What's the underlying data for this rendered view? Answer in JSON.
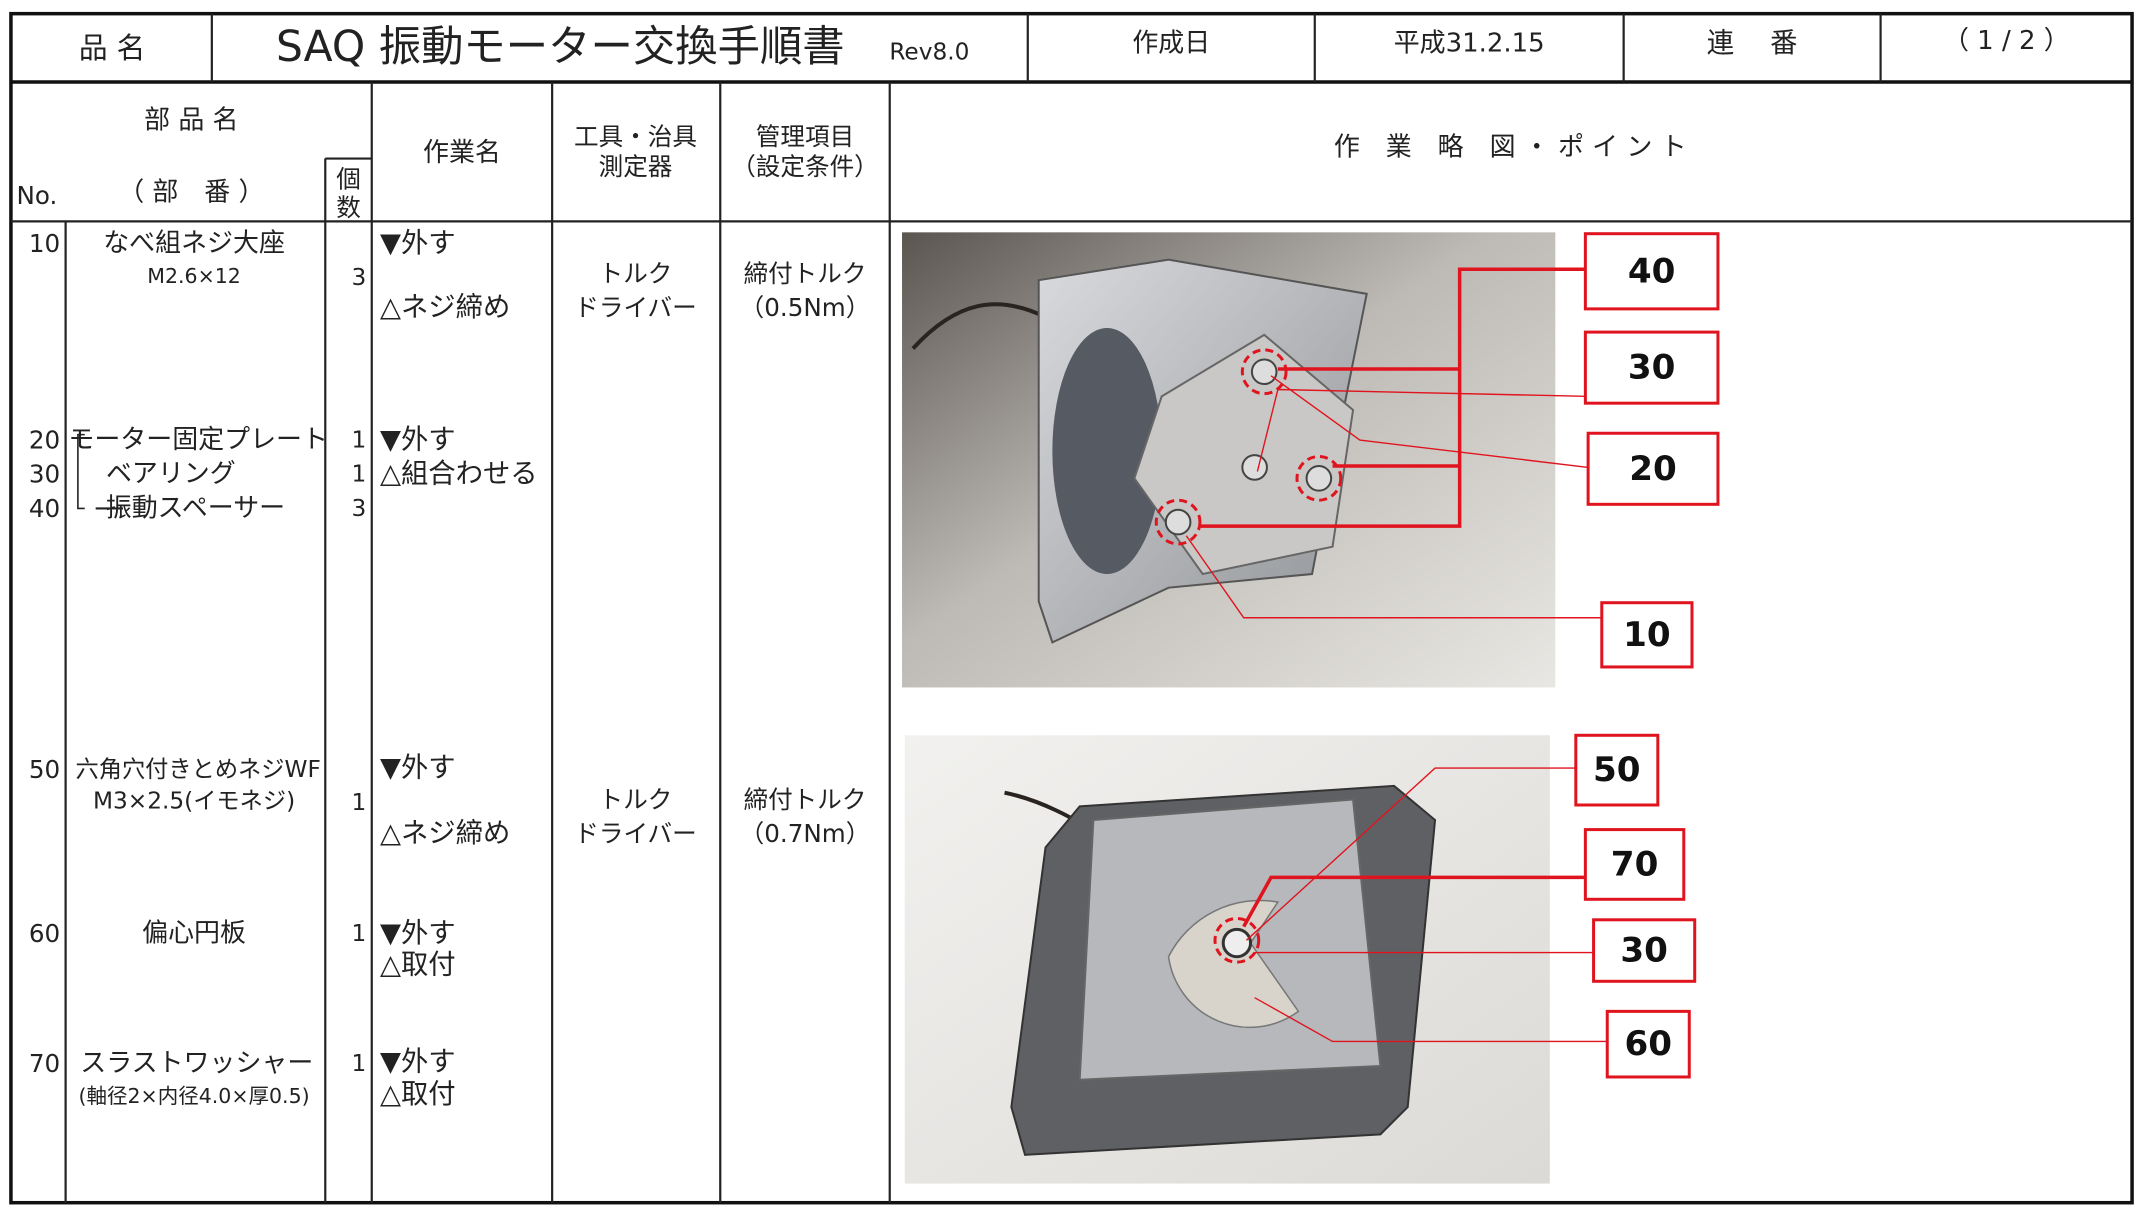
{
  "header": {
    "label_name": "品 名",
    "title": "SAQ 振動モーター交換手順書",
    "revision": "Rev8.0",
    "label_date": "作成日",
    "date": "平成31.2.15",
    "label_serial": "連　 番",
    "serial": "（ 1 / 2 ）"
  },
  "table": {
    "columns": {
      "part_name": "部 品 名",
      "no": "No.",
      "part_number": "（ 部　番 ）",
      "quantity": [
        "個",
        "数"
      ],
      "operation": "作業名",
      "tools": [
        "工具・治具",
        "測定器"
      ],
      "control": [
        "管理項目",
        "（設定条件）"
      ],
      "diagram": "作　業　略　図 ・ ポ イ ン ト"
    },
    "groups": [
      {
        "items": [
          {
            "no": "10",
            "name": "なべ組ネジ大座",
            "spec": "M2.6×12",
            "qty": "3"
          }
        ],
        "operations": [
          "▼外す",
          "△ネジ締め"
        ],
        "tools": [
          "トルク",
          "ドライバー"
        ],
        "control": [
          "締付トルク",
          "（0.5Nm）"
        ]
      },
      {
        "items": [
          {
            "no": "20",
            "name": "モーター固定プレート",
            "qty": "1"
          },
          {
            "no": "30",
            "name": "ベアリング",
            "qty": "1"
          },
          {
            "no": "40",
            "name": "振動スペーサー",
            "qty": "3"
          }
        ],
        "operations": [
          "▼外す",
          "△組合わせる"
        ]
      },
      {
        "items": [
          {
            "no": "50",
            "name": "六角穴付きとめネジWF",
            "spec": "M3×2.5(イモネジ)",
            "qty": "1"
          }
        ],
        "operations": [
          "▼外す",
          "△ネジ締め"
        ],
        "tools": [
          "トルク",
          "ドライバー"
        ],
        "control": [
          "締付トルク",
          "（0.7Nm）"
        ]
      },
      {
        "items": [
          {
            "no": "60",
            "name": "偏心円板",
            "qty": "1"
          }
        ],
        "operations": [
          "▼外す",
          "△取付"
        ]
      },
      {
        "items": [
          {
            "no": "70",
            "name": "スラストワッシャー",
            "spec": "(軸径2×内径4.0×厚0.5)",
            "qty": "1"
          }
        ],
        "operations": [
          "▼外す",
          "△取付"
        ]
      }
    ]
  },
  "figures": [
    {
      "callouts": [
        "40",
        "30",
        "20",
        "10"
      ]
    },
    {
      "callouts": [
        "50",
        "70",
        "30",
        "60"
      ]
    }
  ]
}
